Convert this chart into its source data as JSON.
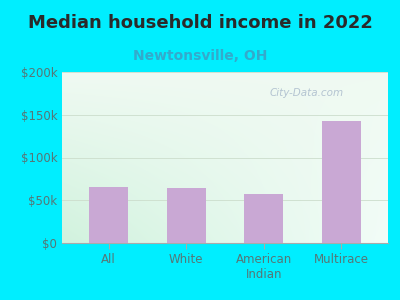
{
  "title": "Median household income in 2022",
  "subtitle": "Newtonsville, OH",
  "categories": [
    "All",
    "White",
    "American\nIndian",
    "Multirace"
  ],
  "values": [
    65000,
    64000,
    57000,
    143000
  ],
  "bar_color": "#c9a8d4",
  "title_color": "#2a2a2a",
  "subtitle_color": "#33aacc",
  "tick_color": "#557777",
  "bg_outer": "#00eeff",
  "bg_plot_topleft": "#d0eedd",
  "bg_plot_topright": "#e8f5f0",
  "bg_plot_bottom": "#eef8ee",
  "ylim": [
    0,
    200000
  ],
  "yticks": [
    0,
    50000,
    100000,
    150000,
    200000
  ],
  "ytick_labels": [
    "$0",
    "$50k",
    "$100k",
    "$150k",
    "$200k"
  ],
  "watermark": "City-Data.com",
  "title_fontsize": 13,
  "subtitle_fontsize": 10,
  "tick_fontsize": 8.5
}
